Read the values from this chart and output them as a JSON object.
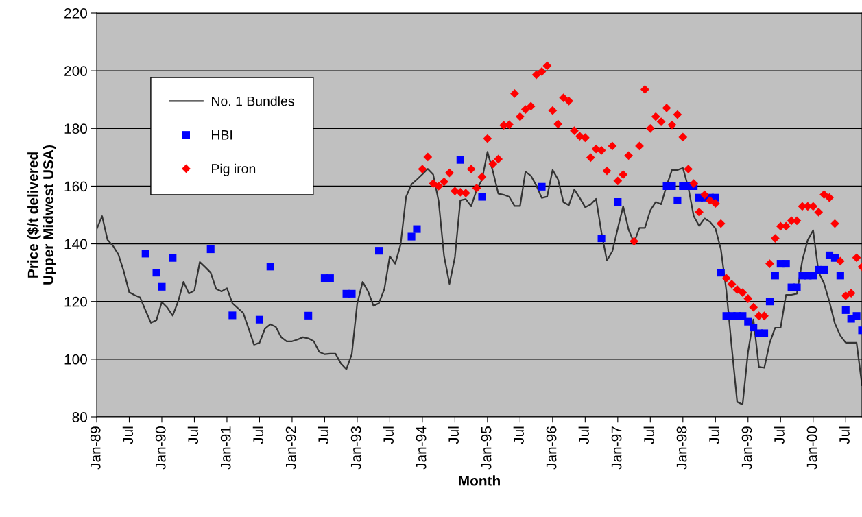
{
  "chart_data": {
    "type": "line",
    "xlabel": "Month",
    "ylabel": "Price ($/t delivered\nUpper Midwest USA)",
    "xlim": [
      "1989-01",
      "2000-10"
    ],
    "ylim": [
      80,
      220
    ],
    "yticks": [
      80,
      100,
      120,
      140,
      160,
      180,
      200,
      220
    ],
    "xticks": [
      {
        "value": "1989-01",
        "label": "Jan-89"
      },
      {
        "value": "1989-07",
        "label": "Jul"
      },
      {
        "value": "1990-01",
        "label": "Jan-90"
      },
      {
        "value": "1990-07",
        "label": "Jul"
      },
      {
        "value": "1991-01",
        "label": "Jan-91"
      },
      {
        "value": "1991-07",
        "label": "Jul"
      },
      {
        "value": "1992-01",
        "label": "Jan-92"
      },
      {
        "value": "1992-07",
        "label": "Jul"
      },
      {
        "value": "1993-01",
        "label": "Jan-93"
      },
      {
        "value": "1993-07",
        "label": "Jul"
      },
      {
        "value": "1994-01",
        "label": "Jan-94"
      },
      {
        "value": "1994-07",
        "label": "Jul"
      },
      {
        "value": "1995-01",
        "label": "Jan-95"
      },
      {
        "value": "1995-07",
        "label": "Jul"
      },
      {
        "value": "1996-01",
        "label": "Jan-96"
      },
      {
        "value": "1996-07",
        "label": "Jul"
      },
      {
        "value": "1997-01",
        "label": "Jan-97"
      },
      {
        "value": "1997-07",
        "label": "Jul"
      },
      {
        "value": "1998-01",
        "label": "Jan-98"
      },
      {
        "value": "1998-07",
        "label": "Jul"
      },
      {
        "value": "1999-01",
        "label": "Jan-99"
      },
      {
        "value": "1999-07",
        "label": "Jul"
      },
      {
        "value": "2000-01",
        "label": "Jan-00"
      },
      {
        "value": "2000-07",
        "label": "Jul"
      }
    ],
    "grid": "y",
    "legend": "top left",
    "series": [
      {
        "name": "No. 1 Bundles",
        "color": "#333333",
        "marker": "none",
        "line_style": "solid",
        "x": [
          "1989-01",
          "1989-02",
          "1989-03",
          "1989-04",
          "1989-05",
          "1989-06",
          "1989-07",
          "1989-08",
          "1989-09",
          "1989-10",
          "1989-11",
          "1989-12",
          "1990-01",
          "1990-02",
          "1990-03",
          "1990-04",
          "1990-05",
          "1990-06",
          "1990-07",
          "1990-08",
          "1990-09",
          "1990-10",
          "1990-11",
          "1990-12",
          "1991-01",
          "1991-02",
          "1991-03",
          "1991-04",
          "1991-05",
          "1991-06",
          "1991-07",
          "1991-08",
          "1991-09",
          "1991-10",
          "1991-11",
          "1991-12",
          "1992-01",
          "1992-02",
          "1992-03",
          "1992-04",
          "1992-05",
          "1992-06",
          "1992-07",
          "1992-08",
          "1992-09",
          "1992-10",
          "1992-11",
          "1992-12",
          "1993-01",
          "1993-02",
          "1993-03",
          "1993-04",
          "1993-05",
          "1993-06",
          "1993-07",
          "1993-08",
          "1993-09",
          "1993-10",
          "1993-11",
          "1993-12",
          "1994-01",
          "1994-02",
          "1994-03",
          "1994-04",
          "1994-05",
          "1994-06",
          "1994-07",
          "1994-08",
          "1994-09",
          "1994-10",
          "1994-11",
          "1994-12",
          "1995-01",
          "1995-02",
          "1995-03",
          "1995-04",
          "1995-05",
          "1995-06",
          "1995-07",
          "1995-08",
          "1995-09",
          "1995-10",
          "1995-11",
          "1995-12",
          "1996-01",
          "1996-02",
          "1996-03",
          "1996-04",
          "1996-05",
          "1996-06",
          "1996-07",
          "1996-08",
          "1996-09",
          "1996-10",
          "1996-11",
          "1996-12",
          "1997-01",
          "1997-02",
          "1997-03",
          "1997-04",
          "1997-05",
          "1997-06",
          "1997-07",
          "1997-08",
          "1997-09",
          "1997-10",
          "1997-11",
          "1997-12",
          "1998-01",
          "1998-02",
          "1998-03",
          "1998-04",
          "1998-05",
          "1998-06",
          "1998-07",
          "1998-08",
          "1998-09",
          "1998-10",
          "1998-11",
          "1998-12",
          "1999-01",
          "1999-02",
          "1999-03",
          "1999-04",
          "1999-05",
          "1999-06",
          "1999-07",
          "1999-08",
          "1999-09",
          "1999-10",
          "1999-11",
          "1999-12",
          "2000-01",
          "2000-02",
          "2000-03",
          "2000-04",
          "2000-05",
          "2000-06",
          "2000-07",
          "2000-08",
          "2000-09",
          "2000-10"
        ],
        "values": [
          145.1,
          149.6,
          141.4,
          139.3,
          136.3,
          130.4,
          123.2,
          122.2,
          121.4,
          116.9,
          112.6,
          113.5,
          119.8,
          117.9,
          115.1,
          120,
          126.8,
          122.8,
          123.8,
          133.7,
          131.9,
          130,
          124.4,
          123.5,
          124.6,
          119.4,
          117.7,
          116,
          110.6,
          105,
          105.7,
          110.6,
          112.1,
          111.2,
          107.6,
          106.2,
          106.2,
          106.8,
          107.6,
          107.2,
          106.2,
          102.5,
          101.7,
          101.9,
          101.9,
          98.5,
          96.5,
          101.7,
          119.3,
          126.8,
          123.5,
          118.5,
          119.4,
          124.3,
          135.7,
          133.1,
          139.8,
          156.3,
          160.6,
          162.3,
          164.1,
          166,
          164,
          154.8,
          135.8,
          126.1,
          135.4,
          155.1,
          155.5,
          153,
          158.7,
          162.3,
          171.9,
          165.1,
          157.4,
          157,
          156.3,
          153.1,
          153.1,
          165,
          163.6,
          160.2,
          155.9,
          156.4,
          165.6,
          162.3,
          154.4,
          153.4,
          158.8,
          155.9,
          152.7,
          153.6,
          155.6,
          143.9,
          134.2,
          137.4,
          145.3,
          153,
          144.9,
          140.4,
          145.5,
          145.5,
          151.6,
          154.5,
          153.7,
          160.2,
          165.6,
          165.6,
          166.3,
          159.5,
          149.6,
          146.2,
          148.8,
          147.6,
          145.3,
          138.1,
          123.9,
          104.1,
          85.2,
          84.3,
          102.5,
          113.8,
          97.3,
          97,
          105.7,
          110.9,
          110.9,
          122.3,
          122.3,
          122.7,
          134.2,
          141.3,
          144.7,
          130.2,
          126.3,
          119.9,
          112.4,
          108.2,
          105.7,
          105.7,
          105.7,
          91
        ]
      },
      {
        "name": "HBI",
        "type": "scatter",
        "color": "#0000ff",
        "marker": "square",
        "x": [
          "1989-10",
          "1989-12",
          "1990-01",
          "1990-03",
          "1990-10",
          "1991-02",
          "1991-07",
          "1991-09",
          "1992-04",
          "1992-07",
          "1992-08",
          "1992-11",
          "1992-12",
          "1993-05",
          "1993-11",
          "1993-12",
          "1994-08",
          "1994-12",
          "1995-11",
          "1996-10",
          "1997-01",
          "1997-10",
          "1997-11",
          "1997-12",
          "1998-01",
          "1998-02",
          "1998-03",
          "1998-04",
          "1998-05",
          "1998-06",
          "1998-07",
          "1998-08",
          "1998-09",
          "1998-10",
          "1998-11",
          "1998-12",
          "1999-01",
          "1999-02",
          "1999-03",
          "1999-04",
          "1999-05",
          "1999-06",
          "1999-07",
          "1999-08",
          "1999-09",
          "1999-10",
          "1999-11",
          "1999-12",
          "2000-01",
          "2000-02",
          "2000-03",
          "2000-04",
          "2000-05",
          "2000-06",
          "2000-07",
          "2000-08",
          "2000-09",
          "2000-10"
        ],
        "values": [
          136.6,
          130,
          125.1,
          135.1,
          138.1,
          115.2,
          113.7,
          132.1,
          115.1,
          128.1,
          128.1,
          122.7,
          122.7,
          137.6,
          142.5,
          145.1,
          169.1,
          156.3,
          159.8,
          141.9,
          154.5,
          160,
          160,
          155,
          160,
          160,
          160,
          156,
          156,
          156,
          156,
          130,
          115,
          115,
          115,
          115,
          113,
          111,
          109,
          109,
          120,
          129,
          133.1,
          133.1,
          124.9,
          124.9,
          129,
          129,
          129,
          131,
          131,
          136,
          135.1,
          129,
          117,
          114,
          115,
          110
        ]
      },
      {
        "name": "Pig iron",
        "type": "scatter",
        "color": "#ff0000",
        "marker": "diamond",
        "x": [
          "1994-01",
          "1994-02",
          "1994-03",
          "1994-04",
          "1994-05",
          "1994-06",
          "1994-07",
          "1994-08",
          "1994-09",
          "1994-10",
          "1994-11",
          "1994-12",
          "1995-01",
          "1995-02",
          "1995-03",
          "1995-04",
          "1995-05",
          "1995-06",
          "1995-07",
          "1995-08",
          "1995-09",
          "1995-10",
          "1995-11",
          "1995-12",
          "1996-01",
          "1996-02",
          "1996-03",
          "1996-04",
          "1996-05",
          "1996-06",
          "1996-07",
          "1996-08",
          "1996-09",
          "1996-10",
          "1996-11",
          "1996-12",
          "1997-01",
          "1997-02",
          "1997-03",
          "1997-04",
          "1997-05",
          "1997-06",
          "1997-07",
          "1997-08",
          "1997-09",
          "1997-10",
          "1997-11",
          "1997-12",
          "1998-01",
          "1998-02",
          "1998-03",
          "1998-04",
          "1998-05",
          "1998-06",
          "1998-07",
          "1998-08",
          "1998-09",
          "1998-10",
          "1998-11",
          "1998-12",
          "1999-01",
          "1999-02",
          "1999-03",
          "1999-04",
          "1999-05",
          "1999-06",
          "1999-07",
          "1999-08",
          "1999-09",
          "1999-10",
          "1999-11",
          "1999-12",
          "2000-01",
          "2000-02",
          "2000-03",
          "2000-04",
          "2000-05",
          "2000-06",
          "2000-07",
          "2000-08",
          "2000-09",
          "2000-10"
        ],
        "values": [
          165.9,
          170.1,
          160.9,
          160,
          161.5,
          164.6,
          158.3,
          157.9,
          157.6,
          165.9,
          159.3,
          163.2,
          176.5,
          167.7,
          169.4,
          181.1,
          181.3,
          192.1,
          184.1,
          186.6,
          187.7,
          198.6,
          199.7,
          201.7,
          186.2,
          181.5,
          190.6,
          189.5,
          179.2,
          177.3,
          176.8,
          169.9,
          172.9,
          172.4,
          165.3,
          173.9,
          161.8,
          164,
          170.6,
          140.9,
          173.9,
          193.5,
          180,
          184.1,
          182.3,
          187.1,
          181.2,
          184.8,
          177,
          165.9,
          160.9,
          151,
          157,
          155,
          154,
          147,
          128.1,
          126,
          124.1,
          123.1,
          121,
          118,
          115,
          115,
          133.1,
          141.9,
          146.1,
          146.1,
          148,
          148,
          153,
          153,
          153,
          151,
          157.1,
          156,
          147,
          134,
          122,
          122.9,
          135.2,
          132
        ]
      }
    ]
  }
}
